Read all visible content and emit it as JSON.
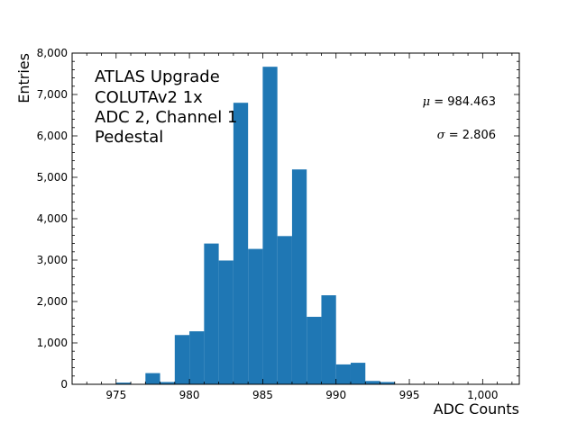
{
  "chart_data": {
    "type": "bar",
    "title": "",
    "xlabel": "ADC Counts",
    "ylabel": "Entries",
    "xlim": [
      972,
      1002.5
    ],
    "ylim": [
      0,
      8000
    ],
    "bin_width": 1,
    "bins": [
      {
        "x0": 975,
        "value": 40
      },
      {
        "x0": 977,
        "value": 270
      },
      {
        "x0": 978,
        "value": 55
      },
      {
        "x0": 979,
        "value": 1190
      },
      {
        "x0": 980,
        "value": 1280
      },
      {
        "x0": 981,
        "value": 3400
      },
      {
        "x0": 982,
        "value": 2990
      },
      {
        "x0": 983,
        "value": 6800
      },
      {
        "x0": 984,
        "value": 3270
      },
      {
        "x0": 985,
        "value": 7670
      },
      {
        "x0": 986,
        "value": 3580
      },
      {
        "x0": 987,
        "value": 5190
      },
      {
        "x0": 988,
        "value": 1630
      },
      {
        "x0": 989,
        "value": 2150
      },
      {
        "x0": 990,
        "value": 480
      },
      {
        "x0": 991,
        "value": 520
      },
      {
        "x0": 992,
        "value": 80
      },
      {
        "x0": 993,
        "value": 55
      }
    ],
    "x_ticks": [
      975,
      980,
      985,
      990,
      995,
      1000
    ],
    "x_tick_labels": [
      "975",
      "980",
      "985",
      "990",
      "995",
      "1,000"
    ],
    "y_ticks": [
      0,
      1000,
      2000,
      3000,
      4000,
      5000,
      6000,
      7000,
      8000
    ],
    "y_tick_labels": [
      "0",
      "1,000",
      "2,000",
      "3,000",
      "4,000",
      "5,000",
      "6,000",
      "7,000",
      "8,000"
    ],
    "annotation_lines": [
      "ATLAS Upgrade",
      "COLUTAv2 1x",
      "ADC 2, Channel 1",
      "Pedestal"
    ],
    "stats": {
      "mu_symbol": "μ",
      "mu_value": " = 984.463",
      "sigma_symbol": "σ",
      "sigma_value": " = 2.806"
    },
    "bar_color": "#1f77b4",
    "grid": false
  }
}
